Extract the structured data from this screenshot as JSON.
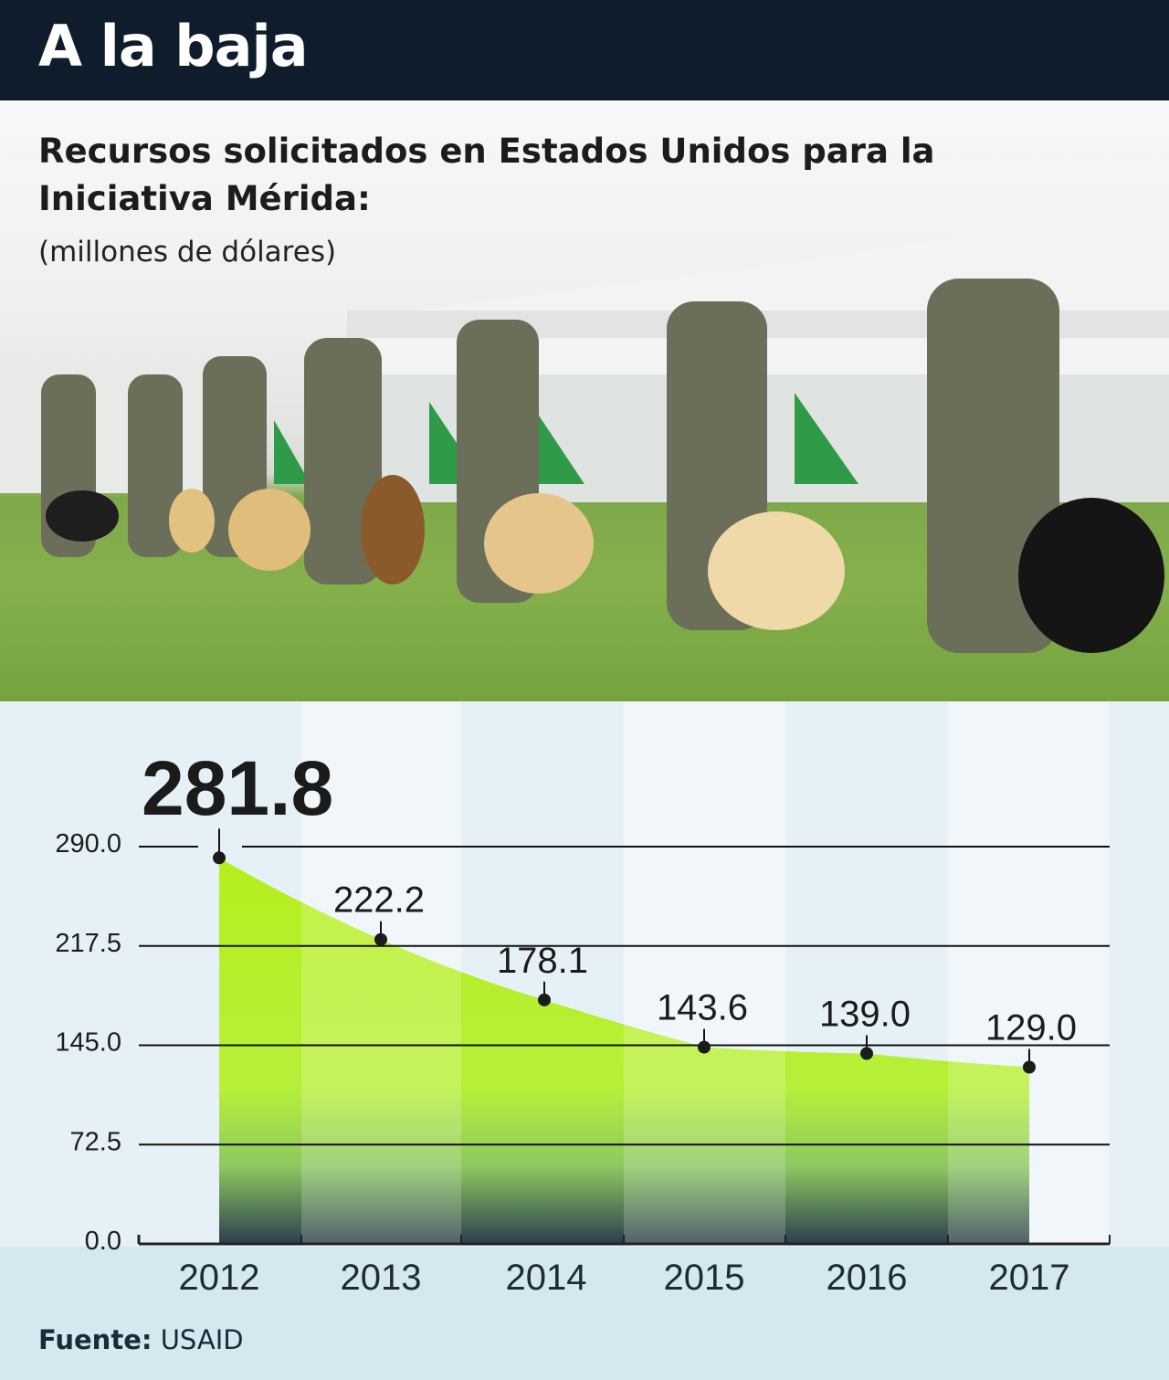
{
  "header": {
    "title": "A la baja"
  },
  "subtitle": "Recursos solicitados en Estados Unidos para la Iniciativa Mérida:",
  "units": "(millones de dólares)",
  "footer": {
    "label": "Fuente:",
    "source": "USAID"
  },
  "colors": {
    "header": "#0e1c2c",
    "fill_top": "#b8f01e",
    "fill_bottom": "#2c3e4e",
    "grid": "#111111",
    "background": "#e4f0f6"
  },
  "chart_data": {
    "type": "area",
    "title": "Recursos solicitados en Estados Unidos para la Iniciativa Mérida",
    "ylabel": "millones de dólares",
    "xlabel": "",
    "categories": [
      "2012",
      "2013",
      "2014",
      "2015",
      "2016",
      "2017"
    ],
    "values": [
      281.8,
      222.2,
      178.1,
      143.6,
      139.0,
      129.0
    ],
    "value_labels": [
      "281.8",
      "222.2",
      "178.1",
      "143.6",
      "139.0",
      "129.0"
    ],
    "yticks": [
      "0.0",
      "72.5",
      "145.0",
      "217.5",
      "290.0"
    ],
    "ytick_values": [
      0,
      72.5,
      145,
      217.5,
      290
    ],
    "ylim": [
      0,
      290
    ],
    "grid": true
  }
}
